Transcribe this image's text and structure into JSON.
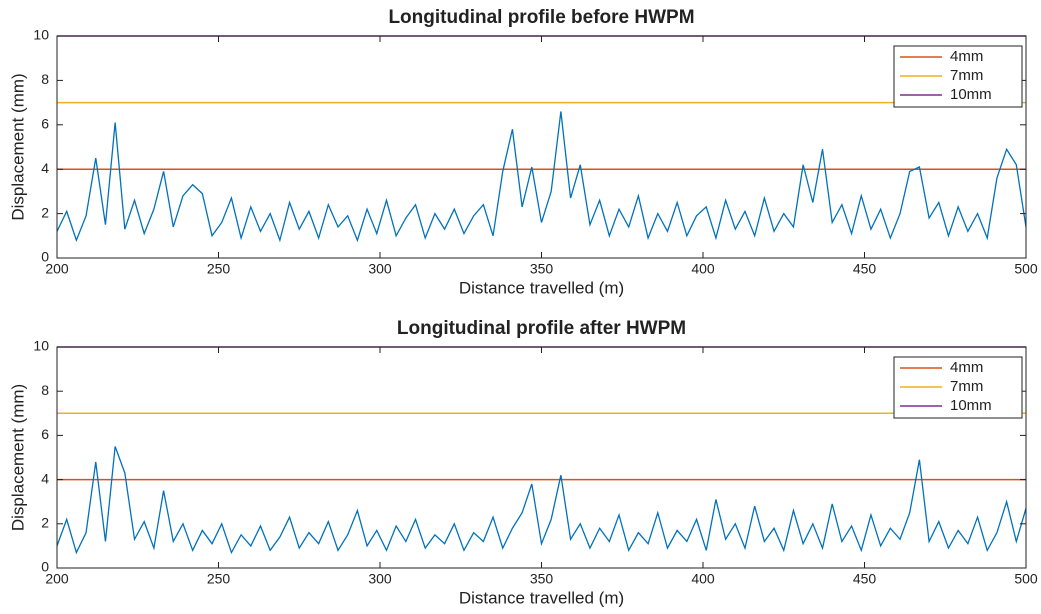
{
  "chart_data": [
    {
      "type": "line",
      "title": "Longitudinal profile before HWPM",
      "xlabel": "Distance travelled (m)",
      "ylabel": "Displacement (mm)",
      "x": [
        200,
        203,
        206,
        209,
        212,
        215,
        218,
        221,
        224,
        227,
        230,
        233,
        236,
        239,
        242,
        245,
        248,
        251,
        254,
        257,
        260,
        263,
        266,
        269,
        272,
        275,
        278,
        281,
        284,
        287,
        290,
        293,
        296,
        299,
        302,
        305,
        308,
        311,
        314,
        317,
        320,
        323,
        326,
        329,
        332,
        335,
        338,
        341,
        344,
        347,
        350,
        353,
        356,
        359,
        362,
        365,
        368,
        371,
        374,
        377,
        380,
        383,
        386,
        389,
        392,
        395,
        398,
        401,
        404,
        407,
        410,
        413,
        416,
        419,
        422,
        425,
        428,
        431,
        434,
        437,
        440,
        443,
        446,
        449,
        452,
        455,
        458,
        461,
        464,
        467,
        470,
        473,
        476,
        479,
        482,
        485,
        488,
        491,
        494,
        497,
        500
      ],
      "series": [
        {
          "color": "#0072bd",
          "values": [
            1.2,
            2.1,
            0.8,
            1.9,
            4.5,
            1.5,
            6.1,
            1.3,
            2.6,
            1.1,
            2.2,
            3.9,
            1.4,
            2.8,
            3.3,
            2.9,
            1.0,
            1.6,
            2.7,
            0.9,
            2.3,
            1.2,
            2.0,
            0.8,
            2.5,
            1.3,
            2.1,
            0.9,
            2.4,
            1.4,
            1.9,
            0.8,
            2.2,
            1.1,
            2.6,
            1.0,
            1.8,
            2.4,
            0.9,
            2.0,
            1.3,
            2.2,
            1.1,
            1.9,
            2.4,
            1.0,
            3.9,
            5.8,
            2.3,
            4.1,
            1.6,
            3.0,
            6.6,
            2.7,
            4.2,
            1.5,
            2.6,
            1.0,
            2.2,
            1.4,
            2.8,
            0.9,
            2.0,
            1.2,
            2.5,
            1.0,
            1.9,
            2.3,
            0.9,
            2.6,
            1.3,
            2.1,
            1.0,
            2.7,
            1.2,
            2.0,
            1.4,
            4.2,
            2.5,
            4.9,
            1.6,
            2.4,
            1.1,
            2.8,
            1.3,
            2.2,
            0.9,
            2.0,
            3.9,
            4.1,
            1.8,
            2.5,
            1.0,
            2.3,
            1.2,
            2.0,
            0.9,
            3.6,
            4.9,
            4.2,
            1.4
          ]
        }
      ],
      "reference_lines": [
        {
          "name": "4mm",
          "value": 4,
          "color": "#d95319"
        },
        {
          "name": "7mm",
          "value": 7,
          "color": "#edb120"
        },
        {
          "name": "10mm",
          "value": 10,
          "color": "#7e2f8e"
        }
      ],
      "xlim": [
        200,
        500
      ],
      "xticks": [
        200,
        250,
        300,
        350,
        400,
        450,
        500
      ],
      "ylim": [
        0,
        10
      ],
      "yticks": [
        0,
        2,
        4,
        6,
        8,
        10
      ],
      "legend": "upper right"
    },
    {
      "type": "line",
      "title": "Longitudinal profile after HWPM",
      "xlabel": "Distance travelled (m)",
      "ylabel": "Displacement (mm)",
      "x": [
        200,
        203,
        206,
        209,
        212,
        215,
        218,
        221,
        224,
        227,
        230,
        233,
        236,
        239,
        242,
        245,
        248,
        251,
        254,
        257,
        260,
        263,
        266,
        269,
        272,
        275,
        278,
        281,
        284,
        287,
        290,
        293,
        296,
        299,
        302,
        305,
        308,
        311,
        314,
        317,
        320,
        323,
        326,
        329,
        332,
        335,
        338,
        341,
        344,
        347,
        350,
        353,
        356,
        359,
        362,
        365,
        368,
        371,
        374,
        377,
        380,
        383,
        386,
        389,
        392,
        395,
        398,
        401,
        404,
        407,
        410,
        413,
        416,
        419,
        422,
        425,
        428,
        431,
        434,
        437,
        440,
        443,
        446,
        449,
        452,
        455,
        458,
        461,
        464,
        467,
        470,
        473,
        476,
        479,
        482,
        485,
        488,
        491,
        494,
        497,
        500
      ],
      "series": [
        {
          "color": "#0072bd",
          "values": [
            1.0,
            2.2,
            0.7,
            1.6,
            4.8,
            1.2,
            5.5,
            4.3,
            1.3,
            2.1,
            0.9,
            3.5,
            1.2,
            2.0,
            0.8,
            1.7,
            1.1,
            2.0,
            0.7,
            1.5,
            1.0,
            1.9,
            0.8,
            1.4,
            2.3,
            0.9,
            1.6,
            1.1,
            2.1,
            0.8,
            1.5,
            2.6,
            1.0,
            1.7,
            0.8,
            1.9,
            1.2,
            2.2,
            0.9,
            1.5,
            1.1,
            2.0,
            0.8,
            1.6,
            1.2,
            2.3,
            0.9,
            1.8,
            2.5,
            3.8,
            1.1,
            2.2,
            4.2,
            1.3,
            2.0,
            0.9,
            1.8,
            1.2,
            2.4,
            0.8,
            1.6,
            1.1,
            2.5,
            0.9,
            1.7,
            1.2,
            2.2,
            0.8,
            3.1,
            1.3,
            2.0,
            0.9,
            2.8,
            1.2,
            1.8,
            0.8,
            2.6,
            1.1,
            2.0,
            0.9,
            2.9,
            1.2,
            1.9,
            0.8,
            2.4,
            1.0,
            1.8,
            1.3,
            2.5,
            4.9,
            1.2,
            2.1,
            0.9,
            1.7,
            1.1,
            2.3,
            0.8,
            1.6,
            3.0,
            1.2,
            2.7
          ]
        }
      ],
      "reference_lines": [
        {
          "name": "4mm",
          "value": 4,
          "color": "#d95319"
        },
        {
          "name": "7mm",
          "value": 7,
          "color": "#edb120"
        },
        {
          "name": "10mm",
          "value": 10,
          "color": "#7e2f8e"
        }
      ],
      "xlim": [
        200,
        500
      ],
      "xticks": [
        200,
        250,
        300,
        350,
        400,
        450,
        500
      ],
      "ylim": [
        0,
        10
      ],
      "yticks": [
        0,
        2,
        4,
        6,
        8,
        10
      ],
      "legend": "upper right"
    }
  ]
}
